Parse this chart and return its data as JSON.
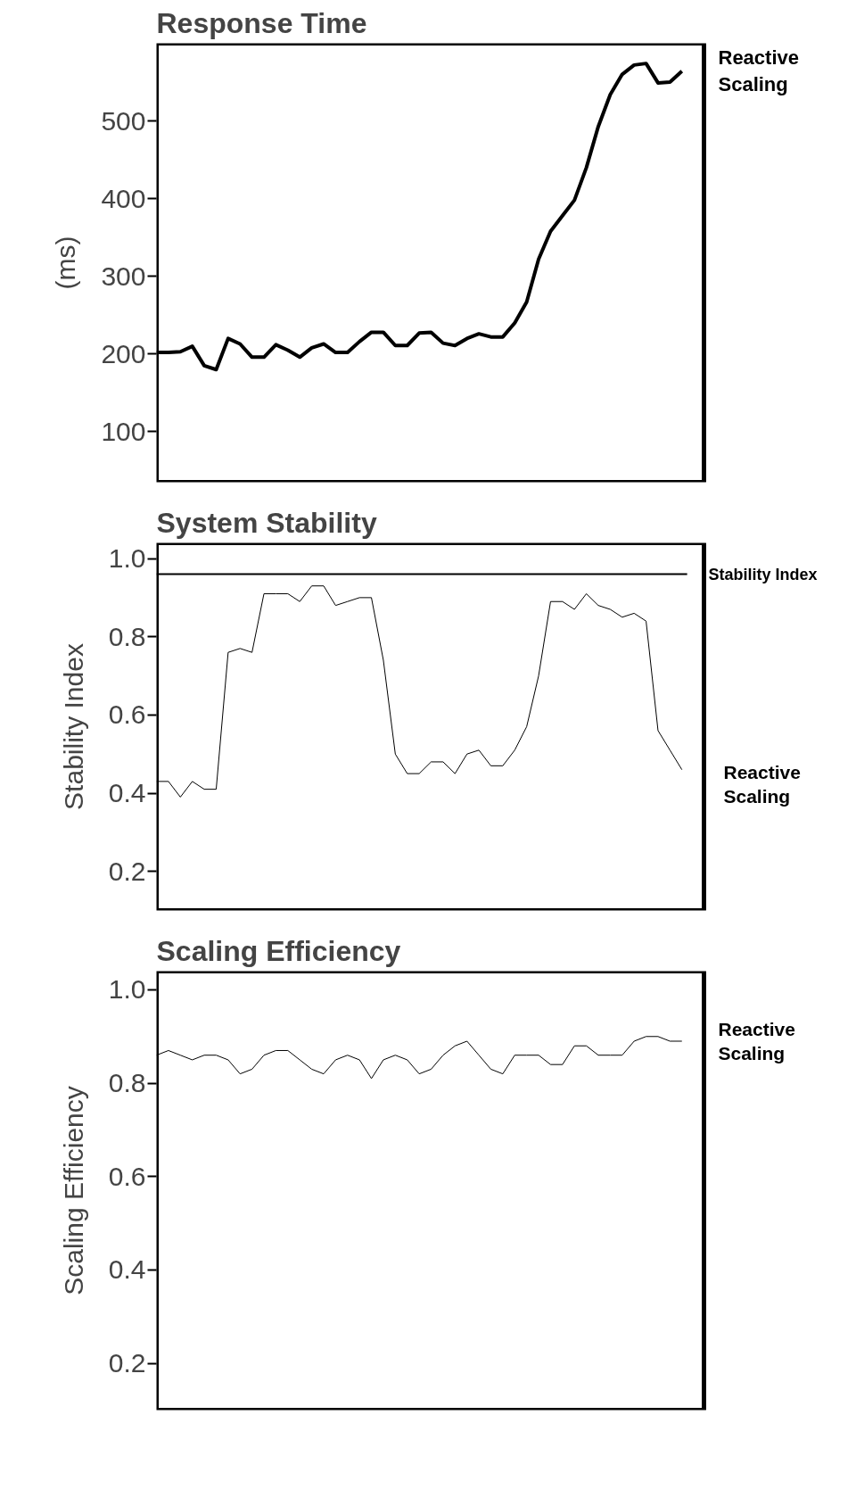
{
  "chart_data": [
    {
      "type": "line",
      "title": "Response Time",
      "ylabel": "(ms)",
      "categories": [
        null,
        null,
        null,
        null,
        null,
        null,
        null,
        null,
        null,
        null,
        null,
        null,
        null,
        null,
        null,
        null,
        null,
        null,
        null,
        null,
        null,
        null,
        null,
        null,
        null,
        null,
        null,
        null,
        null,
        null,
        null,
        null,
        null,
        null,
        null,
        null,
        null,
        null,
        null,
        null,
        null,
        null,
        null,
        null,
        null
      ],
      "series": [
        {
          "name": "Reactive Scaling",
          "color": "#000000",
          "values": [
            202,
            202,
            203,
            210,
            185,
            180,
            220,
            213,
            196,
            196,
            212,
            205,
            196,
            208,
            213,
            202,
            202,
            216,
            228,
            228,
            211,
            211,
            227,
            228,
            214,
            211,
            220,
            226,
            222,
            222,
            240,
            267,
            322,
            358,
            378,
            398,
            440,
            493,
            534,
            560,
            572,
            574,
            549,
            550,
            564
          ]
        }
      ],
      "ylim": [
        35,
        600
      ],
      "yticks": [
        100,
        200,
        300,
        400,
        500
      ],
      "tick_labels": "y",
      "grid": false,
      "legend": false,
      "line_style": "solid"
    },
    {
      "type": "line",
      "title": "System Stability",
      "ylabel": "Stability Index",
      "categories": [
        null,
        null,
        null,
        null,
        null,
        null,
        null,
        null,
        null,
        null,
        null,
        null,
        null,
        null,
        null,
        null,
        null,
        null,
        null,
        null,
        null,
        null,
        null,
        null,
        null,
        null,
        null,
        null,
        null,
        null,
        null,
        null,
        null,
        null,
        null,
        null,
        null,
        null,
        null,
        null,
        null,
        null,
        null,
        null,
        null
      ],
      "series": [
        {
          "name": "Reactive Scaling",
          "color": "#000000",
          "values": [
            0.43,
            0.43,
            0.39,
            0.43,
            0.41,
            0.41,
            0.76,
            0.77,
            0.76,
            0.91,
            0.91,
            0.91,
            0.89,
            0.93,
            0.93,
            0.88,
            0.89,
            0.9,
            0.9,
            0.74,
            0.5,
            0.45,
            0.45,
            0.48,
            0.48,
            0.45,
            0.5,
            0.51,
            0.47,
            0.47,
            0.51,
            0.57,
            0.7,
            0.89,
            0.89,
            0.87,
            0.91,
            0.88,
            0.87,
            0.85,
            0.86,
            0.84,
            0.56,
            0.51,
            0.46
          ]
        }
      ],
      "ref_lines": [
        {
          "axis": "y",
          "value": 0.96,
          "label": "Stability Index",
          "color": "#000000"
        }
      ],
      "ylim": [
        0.1,
        1.04
      ],
      "yticks": [
        {
          "value": 0.2,
          "label": "0.2"
        },
        {
          "value": 0.4,
          "label": "0.4"
        },
        {
          "value": 0.6,
          "label": "0.6"
        },
        {
          "value": 0.8,
          "label": "0.8"
        },
        {
          "value": 1.0,
          "label": "1.0"
        }
      ],
      "tick_labels": "y",
      "grid": false,
      "legend": false,
      "line_style": "solid"
    },
    {
      "type": "line",
      "title": "Scaling Efficiency",
      "ylabel": "Scaling Efficiency",
      "categories": [
        null,
        null,
        null,
        null,
        null,
        null,
        null,
        null,
        null,
        null,
        null,
        null,
        null,
        null,
        null,
        null,
        null,
        null,
        null,
        null,
        null,
        null,
        null,
        null,
        null,
        null,
        null,
        null,
        null,
        null,
        null,
        null,
        null,
        null,
        null,
        null,
        null,
        null,
        null,
        null,
        null,
        null,
        null,
        null,
        null
      ],
      "series": [
        {
          "name": "Reactive Scaling",
          "color": "#000000",
          "values": [
            0.86,
            0.87,
            0.86,
            0.85,
            0.86,
            0.86,
            0.85,
            0.82,
            0.83,
            0.86,
            0.87,
            0.87,
            0.85,
            0.83,
            0.82,
            0.85,
            0.86,
            0.85,
            0.81,
            0.85,
            0.86,
            0.85,
            0.82,
            0.83,
            0.86,
            0.88,
            0.89,
            0.86,
            0.83,
            0.82,
            0.86,
            0.86,
            0.86,
            0.84,
            0.84,
            0.88,
            0.88,
            0.86,
            0.86,
            0.86,
            0.89,
            0.9,
            0.9,
            0.89,
            0.89
          ]
        }
      ],
      "ylim": [
        0.1,
        1.04
      ],
      "yticks": [
        {
          "value": 0.2,
          "label": "0.2"
        },
        {
          "value": 0.4,
          "label": "0.4"
        },
        {
          "value": 0.6,
          "label": "0.6"
        },
        {
          "value": 0.8,
          "label": "0.8"
        },
        {
          "value": 1.0,
          "label": "1.0"
        }
      ],
      "tick_labels": "y",
      "grid": false,
      "legend": false,
      "line_style": "solid"
    }
  ]
}
